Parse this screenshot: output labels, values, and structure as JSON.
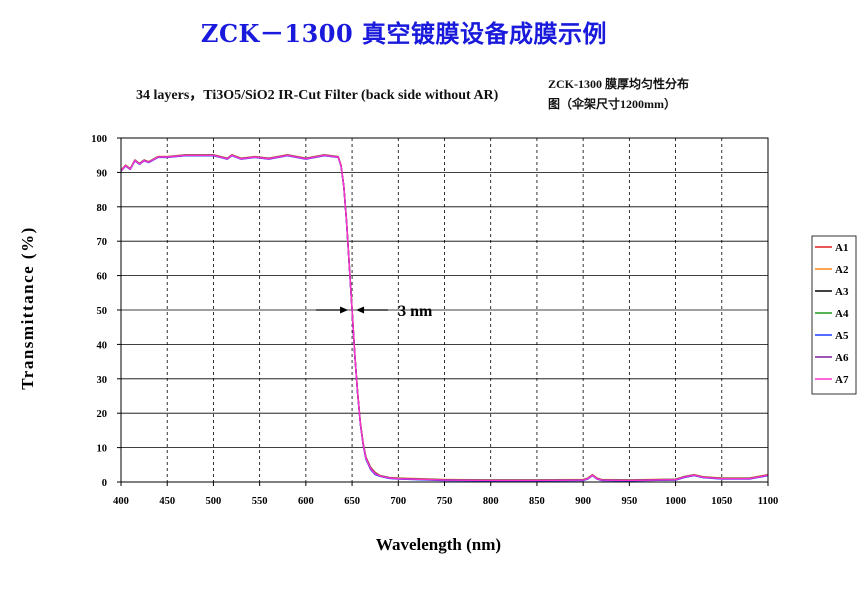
{
  "header": {
    "title": "ZCK－1300 真空镀膜设备成膜示例",
    "subtitle": "34 layers，Ti3O5/SiO2 IR-Cut Filter (back side without AR)",
    "note_line1": "ZCK-1300  膜厚均匀性分布",
    "note_line2": "图（伞架尺寸1200mm）"
  },
  "chart_data": {
    "type": "line",
    "xlabel": "Wavelength (nm)",
    "ylabel": "Transmittance (%)",
    "xlim": [
      400,
      1100
    ],
    "ylim": [
      0,
      100
    ],
    "x_ticks": [
      400,
      450,
      500,
      550,
      600,
      650,
      700,
      750,
      800,
      850,
      900,
      950,
      1000,
      1050,
      1100
    ],
    "y_ticks": [
      0,
      10,
      20,
      30,
      40,
      50,
      60,
      70,
      80,
      90,
      100
    ],
    "grid": "vertical dashed, horizontal solid",
    "legend_position": "right",
    "annotation": {
      "text": "3 nm",
      "x": 650,
      "y": 50
    },
    "x": [
      400,
      405,
      410,
      415,
      420,
      425,
      430,
      440,
      450,
      470,
      500,
      515,
      520,
      530,
      545,
      560,
      580,
      600,
      620,
      635,
      638,
      641,
      644,
      647,
      650,
      653,
      656,
      659,
      662,
      665,
      670,
      675,
      680,
      690,
      700,
      750,
      800,
      850,
      900,
      905,
      910,
      915,
      920,
      950,
      1000,
      1010,
      1020,
      1030,
      1050,
      1080,
      1100
    ],
    "series": [
      {
        "name": "A1",
        "color": "#e02020",
        "offset": 0.0
      },
      {
        "name": "A2",
        "color": "#ff8c1a",
        "offset": 0.6
      },
      {
        "name": "A3",
        "color": "#000000",
        "offset": -0.3
      },
      {
        "name": "A4",
        "color": "#1f9a1f",
        "offset": 0.3
      },
      {
        "name": "A5",
        "color": "#1a3aff",
        "offset": -0.6
      },
      {
        "name": "A6",
        "color": "#7a1fa0",
        "offset": 0.15
      },
      {
        "name": "A7",
        "color": "#ff33cc",
        "offset": -0.15
      }
    ],
    "base_values": [
      90.5,
      92,
      91,
      93.5,
      92.5,
      93.5,
      93,
      94.5,
      94.5,
      95,
      95,
      94,
      95,
      94,
      94.5,
      94,
      95,
      94,
      95,
      94.5,
      92,
      86,
      76,
      63,
      50,
      37,
      26,
      17,
      11,
      7,
      4,
      2.5,
      1.8,
      1.2,
      1,
      0.6,
      0.5,
      0.5,
      0.6,
      1,
      2,
      1,
      0.6,
      0.5,
      0.7,
      1.5,
      2,
      1.4,
      1,
      1,
      2
    ]
  }
}
